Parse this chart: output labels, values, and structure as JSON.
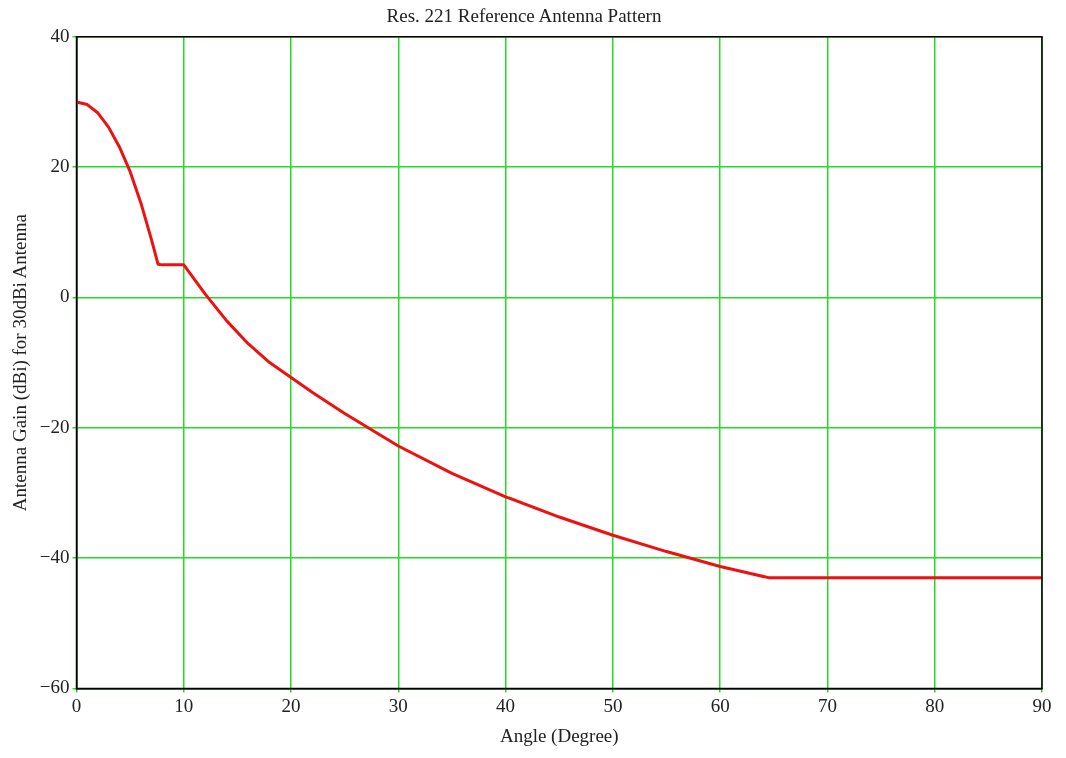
{
  "chart_data": {
    "type": "line",
    "title": "Res. 221 Reference Antenna Pattern",
    "xlabel": "Angle (Degree)",
    "ylabel": "Antenna Gain (dBi) for 30dBi Antenna",
    "x": [
      0,
      1,
      2,
      3,
      4,
      5,
      6,
      7,
      7.6,
      8,
      9,
      10,
      12,
      14,
      16,
      18,
      20,
      22,
      25,
      28,
      30,
      35,
      40,
      45,
      50,
      55,
      60,
      64.5,
      70,
      80,
      90
    ],
    "series": [
      {
        "color": "#ee1111",
        "values": [
          30,
          29.6,
          28.3,
          26.1,
          23.1,
          19.3,
          14.5,
          8.8,
          5.1,
          5,
          5,
          5,
          0.5,
          -3.6,
          -7.1,
          -10,
          -12.3,
          -14.6,
          -17.8,
          -20.8,
          -22.8,
          -27,
          -30.6,
          -33.7,
          -36.5,
          -39,
          -41.3,
          -43,
          -43,
          -43,
          -43
        ]
      }
    ],
    "xlim": [
      0,
      90
    ],
    "xticks": [
      0,
      10,
      20,
      30,
      40,
      50,
      60,
      70,
      80,
      90
    ],
    "ylim": [
      -60,
      40
    ],
    "yticks": [
      {
        "value": -60,
        "label": "−60"
      },
      {
        "value": -40,
        "label": "−40"
      },
      {
        "value": -20,
        "label": "−20"
      },
      0,
      20,
      40
    ],
    "grid": true,
    "legend": false,
    "marker": "none",
    "line_style": "solid"
  }
}
